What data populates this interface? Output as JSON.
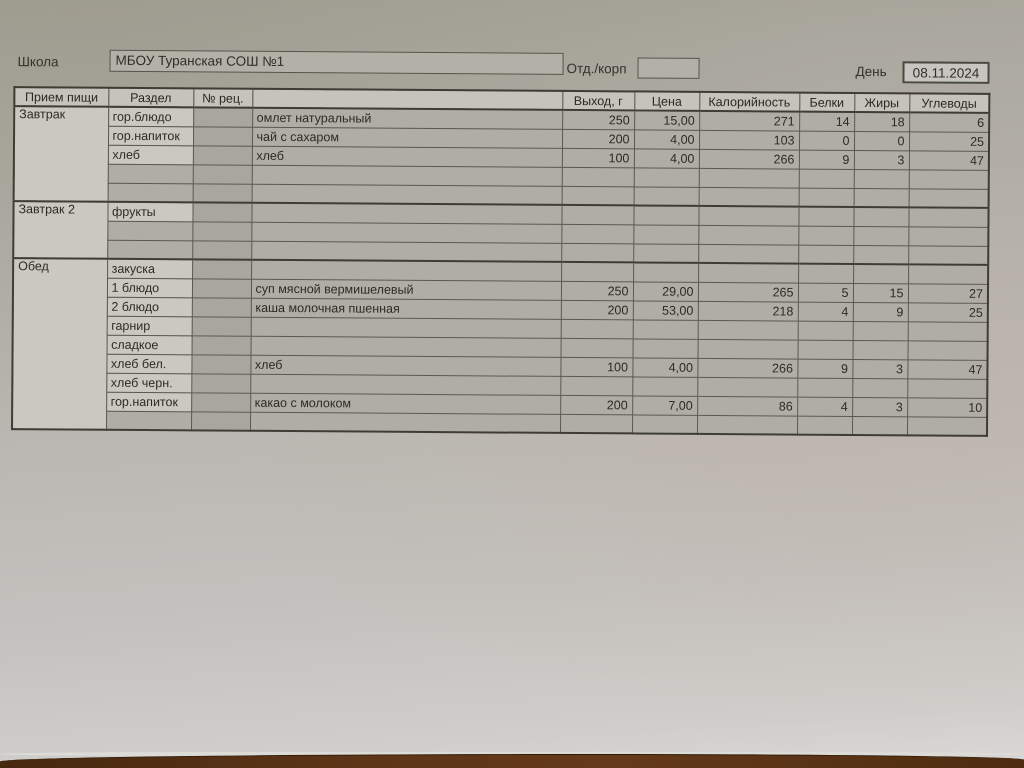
{
  "form": {
    "school_label": "Школа",
    "school_value": "МБОУ Туранская СОШ №1",
    "dept_label": "Отд./корп",
    "dept_value": "",
    "day_label": "День",
    "day_value": "08.11.2024"
  },
  "table": {
    "headers": [
      "Прием пищи",
      "Раздел",
      "№ рец.",
      "",
      "Выход, г",
      "Цена",
      "Калорийность",
      "Белки",
      "Жиры",
      "Углеводы"
    ],
    "sections": [
      {
        "meal": "Завтрак",
        "rows": [
          {
            "razdel": "гор.блюдо",
            "rec": "",
            "dish": "омлет натуральный",
            "out": "250",
            "price": "15,00",
            "cal": "271",
            "protein": "14",
            "fat": "18",
            "carbs": "6"
          },
          {
            "razdel": "гор.напиток",
            "rec": "",
            "dish": "чай с сахаром",
            "out": "200",
            "price": "4,00",
            "cal": "103",
            "protein": "0",
            "fat": "0",
            "carbs": "25"
          },
          {
            "razdel": "хлеб",
            "rec": "",
            "dish": "хлеб",
            "out": "100",
            "price": "4,00",
            "cal": "266",
            "protein": "9",
            "fat": "3",
            "carbs": "47"
          },
          {
            "razdel": "",
            "rec": "",
            "dish": "",
            "out": "",
            "price": "",
            "cal": "",
            "protein": "",
            "fat": "",
            "carbs": ""
          },
          {
            "razdel": "",
            "rec": "",
            "dish": "",
            "out": "",
            "price": "",
            "cal": "",
            "protein": "",
            "fat": "",
            "carbs": ""
          }
        ]
      },
      {
        "meal": "Завтрак 2",
        "rows": [
          {
            "razdel": "фрукты",
            "rec": "",
            "dish": "",
            "out": "",
            "price": "",
            "cal": "",
            "protein": "",
            "fat": "",
            "carbs": ""
          },
          {
            "razdel": "",
            "rec": "",
            "dish": "",
            "out": "",
            "price": "",
            "cal": "",
            "protein": "",
            "fat": "",
            "carbs": ""
          },
          {
            "razdel": "",
            "rec": "",
            "dish": "",
            "out": "",
            "price": "",
            "cal": "",
            "protein": "",
            "fat": "",
            "carbs": ""
          }
        ]
      },
      {
        "meal": "Обед",
        "rows": [
          {
            "razdel": "закуска",
            "rec": "",
            "dish": "",
            "out": "",
            "price": "",
            "cal": "",
            "protein": "",
            "fat": "",
            "carbs": ""
          },
          {
            "razdel": "1 блюдо",
            "rec": "",
            "dish": "суп мясной вермишелевый",
            "out": "250",
            "price": "29,00",
            "cal": "265",
            "protein": "5",
            "fat": "15",
            "carbs": "27"
          },
          {
            "razdel": "2 блюдо",
            "rec": "",
            "dish": "каша молочная пшенная",
            "out": "200",
            "price": "53,00",
            "cal": "218",
            "protein": "4",
            "fat": "9",
            "carbs": "25"
          },
          {
            "razdel": "гарнир",
            "rec": "",
            "dish": "",
            "out": "",
            "price": "",
            "cal": "",
            "protein": "",
            "fat": "",
            "carbs": ""
          },
          {
            "razdel": "сладкое",
            "rec": "",
            "dish": "",
            "out": "",
            "price": "",
            "cal": "",
            "protein": "",
            "fat": "",
            "carbs": ""
          },
          {
            "razdel": "хлеб бел.",
            "rec": "",
            "dish": "хлеб",
            "out": "100",
            "price": "4,00",
            "cal": "266",
            "protein": "9",
            "fat": "3",
            "carbs": "47"
          },
          {
            "razdel": "хлеб черн.",
            "rec": "",
            "dish": "",
            "out": "",
            "price": "",
            "cal": "",
            "protein": "",
            "fat": "",
            "carbs": ""
          },
          {
            "razdel": "гор.напиток",
            "rec": "",
            "dish": "какао с молоком",
            "out": "200",
            "price": "7,00",
            "cal": "86",
            "protein": "4",
            "fat": "3",
            "carbs": "10"
          },
          {
            "razdel": "",
            "rec": "",
            "dish": "",
            "out": "",
            "price": "",
            "cal": "",
            "protein": "",
            "fat": "",
            "carbs": ""
          }
        ]
      }
    ]
  },
  "colors": {
    "paper_top": "#a3a095",
    "paper_bottom": "#d8d6d3",
    "cell_grey": "#b0ada5",
    "cell_light": "#cbc8c0",
    "table_border": "#3e3d35",
    "wood_table": "#5d3517"
  }
}
